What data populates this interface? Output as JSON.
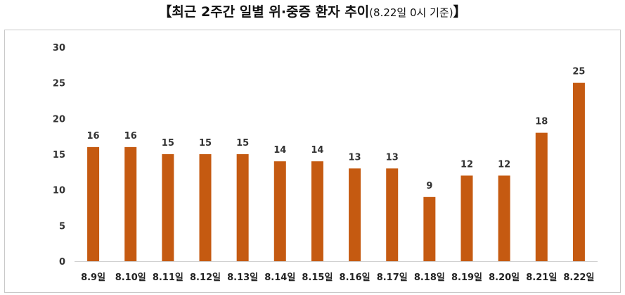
{
  "title": {
    "main": "【최근 2주간 일별 위·중증 환자 추이",
    "sub": "(8.22일 0시 기준)",
    "close": "】"
  },
  "chart_data": {
    "type": "bar",
    "categories": [
      "8.9일",
      "8.10일",
      "8.11일",
      "8.12일",
      "8.13일",
      "8.14일",
      "8.15일",
      "8.16일",
      "8.17일",
      "8.18일",
      "8.19일",
      "8.20일",
      "8.21일",
      "8.22일"
    ],
    "values": [
      16,
      16,
      15,
      15,
      15,
      14,
      14,
      13,
      13,
      9,
      12,
      12,
      18,
      25
    ],
    "ylim": [
      0,
      30
    ],
    "yticks": [
      0,
      5,
      10,
      15,
      20,
      25,
      30
    ],
    "grid": false,
    "legend": "none",
    "bar_color": "#c55a11"
  }
}
